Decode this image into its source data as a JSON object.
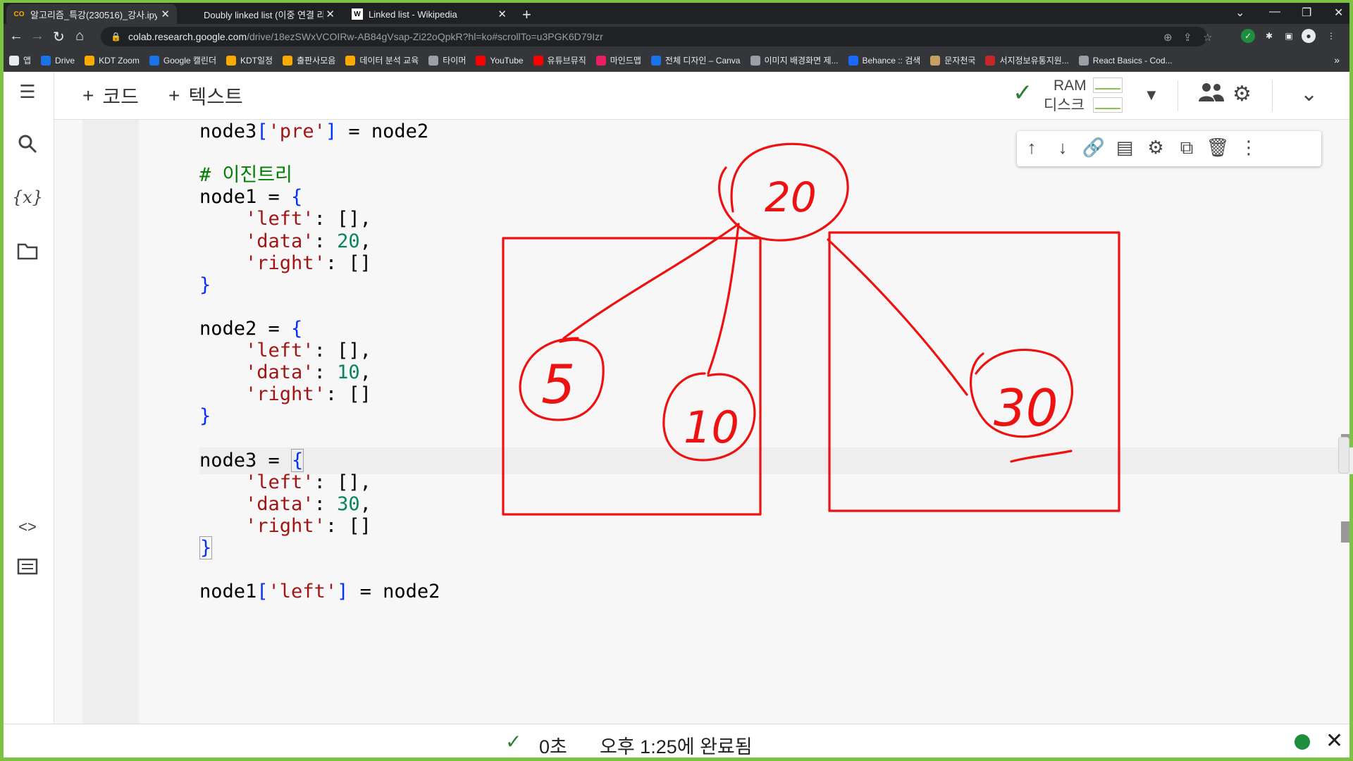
{
  "browser": {
    "tabs": [
      {
        "label": "알고리즘_특강(230516)_강사.ipy",
        "favicon": "CO",
        "active": true
      },
      {
        "label": "Doubly linked list (이중 연결 리",
        "favicon": "",
        "active": false
      },
      {
        "label": "Linked list - Wikipedia",
        "favicon": "W",
        "active": false
      }
    ],
    "new_tab": "+",
    "url_host": "colab.research.google.com",
    "url_path": "/drive/18ezSWxVCOIRw-AB84gVsap-Zi22oQpkR?hl=ko#scrollTo=u3PGK6D79Izr",
    "bookmarks": [
      "앱",
      "Drive",
      "KDT Zoom",
      "Google 캘린더",
      "KDT일정",
      "출판사모음",
      "데이터 분석 교육",
      "타이머",
      "YouTube",
      "유튜브뮤직",
      "마인드맵",
      "전체 디자인 – Canva",
      "이미지 배경화면 제...",
      "Behance :: 검색",
      "문자천국",
      "서지정보유통지원...",
      "React Basics - Cod..."
    ],
    "bookmarks_more": "»"
  },
  "colab": {
    "add_code": "코드",
    "add_text": "텍스트",
    "ram_label": "RAM",
    "disk_label": "디스크"
  },
  "code_lines": [
    {
      "parts": [
        [
          "node3",
          ""
        ],
        [
          "[",
          "b"
        ],
        [
          "'pre'",
          "s"
        ],
        [
          "]",
          "b"
        ],
        [
          " = node2",
          ""
        ]
      ]
    },
    {
      "parts": []
    },
    {
      "parts": [
        [
          "# 이진트리",
          "c"
        ]
      ]
    },
    {
      "parts": [
        [
          "node1 = ",
          ""
        ],
        [
          "{",
          "b"
        ]
      ]
    },
    {
      "parts": [
        [
          "    ",
          ""
        ],
        [
          "'left'",
          "s"
        ],
        [
          ": [],",
          ""
        ]
      ]
    },
    {
      "parts": [
        [
          "    ",
          ""
        ],
        [
          "'data'",
          "s"
        ],
        [
          ": ",
          ""
        ],
        [
          "20",
          "n"
        ],
        [
          ",",
          ""
        ]
      ]
    },
    {
      "parts": [
        [
          "    ",
          ""
        ],
        [
          "'right'",
          "s"
        ],
        [
          ": []",
          ""
        ]
      ]
    },
    {
      "parts": [
        [
          "}",
          "b"
        ]
      ]
    },
    {
      "parts": []
    },
    {
      "parts": [
        [
          "node2 = ",
          ""
        ],
        [
          "{",
          "b"
        ]
      ]
    },
    {
      "parts": [
        [
          "    ",
          ""
        ],
        [
          "'left'",
          "s"
        ],
        [
          ": [],",
          ""
        ]
      ]
    },
    {
      "parts": [
        [
          "    ",
          ""
        ],
        [
          "'data'",
          "s"
        ],
        [
          ": ",
          ""
        ],
        [
          "10",
          "n"
        ],
        [
          ",",
          ""
        ]
      ]
    },
    {
      "parts": [
        [
          "    ",
          ""
        ],
        [
          "'right'",
          "s"
        ],
        [
          ": []",
          ""
        ]
      ]
    },
    {
      "parts": [
        [
          "}",
          "b"
        ]
      ]
    },
    {
      "parts": []
    },
    {
      "parts": [
        [
          "node3 = ",
          ""
        ],
        [
          "{",
          "b"
        ]
      ]
    },
    {
      "parts": [
        [
          "    ",
          ""
        ],
        [
          "'left'",
          "s"
        ],
        [
          ": [],",
          ""
        ]
      ]
    },
    {
      "parts": [
        [
          "    ",
          ""
        ],
        [
          "'data'",
          "s"
        ],
        [
          ": ",
          ""
        ],
        [
          "30",
          "n"
        ],
        [
          ",",
          ""
        ]
      ]
    },
    {
      "parts": [
        [
          "    ",
          ""
        ],
        [
          "'right'",
          "s"
        ],
        [
          ": []",
          ""
        ]
      ]
    },
    {
      "parts": [
        [
          "}",
          "b"
        ]
      ]
    },
    {
      "parts": []
    },
    {
      "parts": [
        [
          "node1",
          ""
        ],
        [
          "[",
          "b"
        ],
        [
          "'left'",
          "s"
        ],
        [
          "]",
          "b"
        ],
        [
          " = node2",
          ""
        ]
      ]
    }
  ],
  "annotation": {
    "root_value": "20",
    "left_values": [
      "5",
      "10"
    ],
    "right_value": "30",
    "color": "#ee1111"
  },
  "status": {
    "duration": "0초",
    "completed": "오후 1:25에 완료됨"
  }
}
